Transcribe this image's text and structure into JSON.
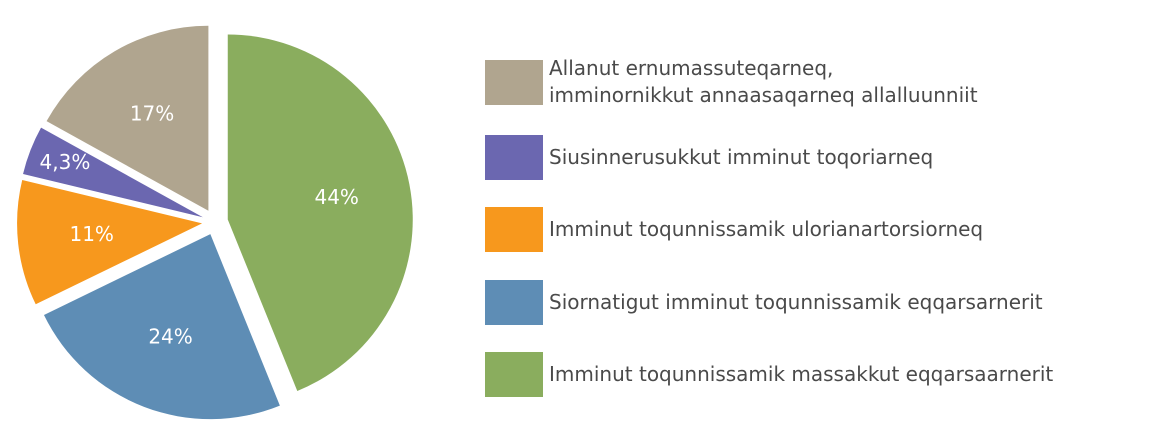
{
  "chart_data": {
    "type": "pie",
    "categories": [
      "Allanut ernumassuteqarneq,\nimminornikkut annaasaqarneq allalluunniit",
      "Siusinnerusukkut imminut toqoriarneq",
      "Imminut toqunnissamik ulorianartorsiorneq",
      "Siornatigut imminut toqunnissamik eqqarsarnerit",
      "Imminut toqunnissamik massakkut eqqarsaarnerit"
    ],
    "values": [
      17,
      4.3,
      11,
      24,
      44
    ],
    "value_labels": [
      "17%",
      "4,3%",
      "11%",
      "24%",
      "44%"
    ],
    "colors": [
      "#b0a58f",
      "#6b67b0",
      "#f7981d",
      "#5e8db5",
      "#8aad5e"
    ]
  }
}
